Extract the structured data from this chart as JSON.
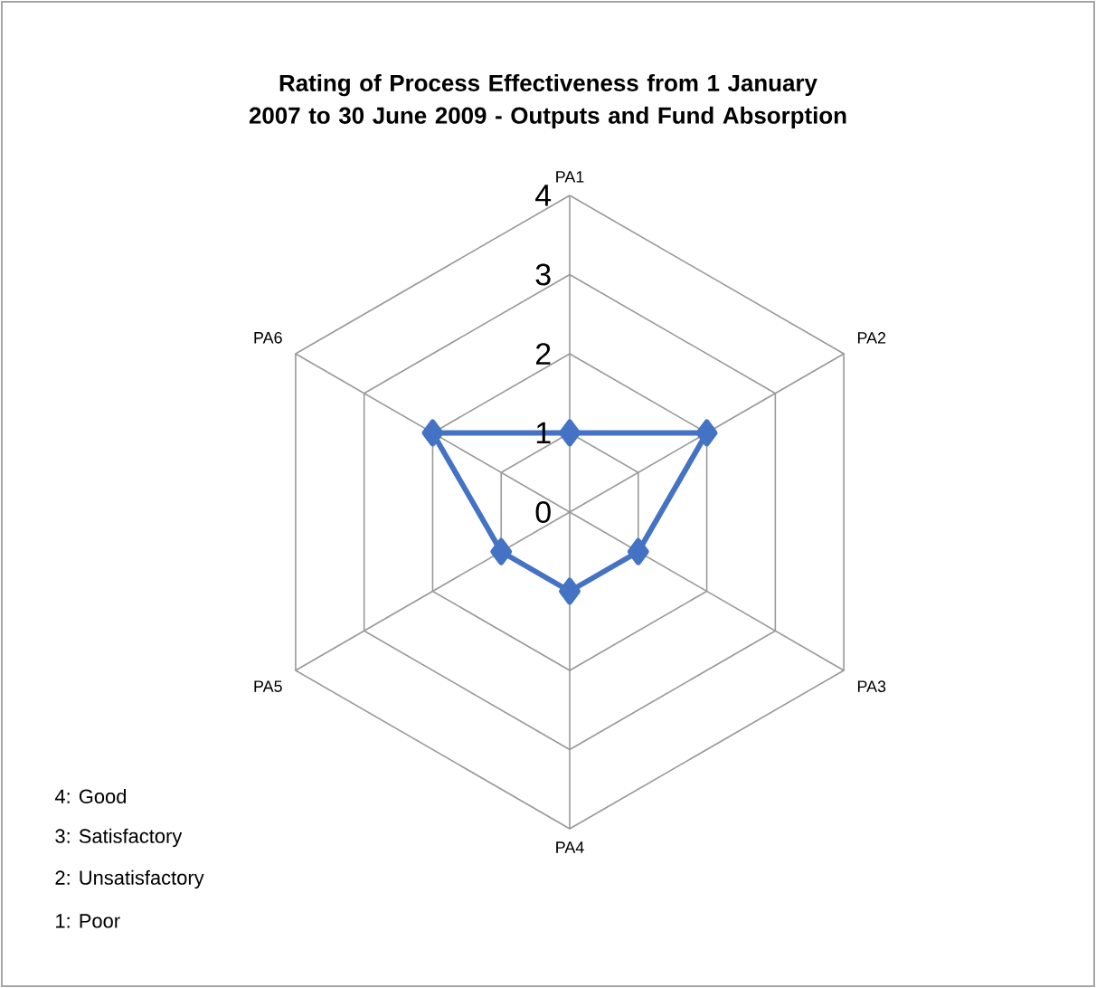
{
  "chart_data": {
    "type": "radar",
    "title": "Rating of Process Effectiveness from 1 January 2007 to 30 June 2009 - Outputs and Fund Absorption",
    "categories": [
      "PA1",
      "PA2",
      "PA3",
      "PA4",
      "PA5",
      "PA6"
    ],
    "series": [
      {
        "color": "#4472c4",
        "values": [
          1,
          2,
          1,
          1,
          1,
          2
        ]
      }
    ],
    "ylim": [
      0,
      4
    ],
    "yticks": [
      0,
      1,
      2,
      3,
      4
    ],
    "grid": true,
    "marker": "diamond",
    "annotations": [
      "4: Good",
      "3: Satisfactory",
      "2: Unsatisfactory",
      "1: Poor"
    ]
  }
}
